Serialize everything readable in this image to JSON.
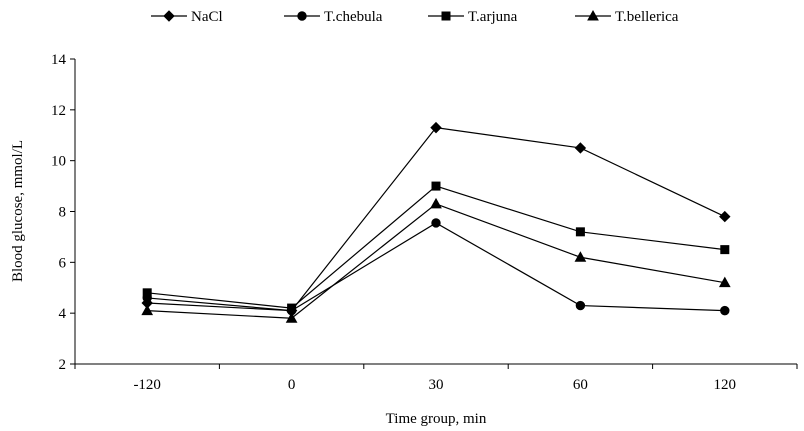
{
  "chart_data": {
    "type": "line",
    "title": "",
    "xlabel": "Time group, min",
    "ylabel": "Blood glucose, mmol/L",
    "categories": [
      "-120",
      "0",
      "30",
      "60",
      "120"
    ],
    "ylim": [
      2,
      14
    ],
    "yticks": [
      "2",
      "4",
      "6",
      "8",
      "10",
      "12",
      "14"
    ],
    "grid": false,
    "legend_position": "top",
    "series": [
      {
        "name": "NaCl",
        "marker": "diamond",
        "values": [
          4.4,
          4.1,
          11.3,
          10.5,
          7.8
        ]
      },
      {
        "name": "T.chebula",
        "marker": "circle",
        "values": [
          4.6,
          4.1,
          7.55,
          4.3,
          4.1
        ]
      },
      {
        "name": "T.arjuna",
        "marker": "square",
        "values": [
          4.8,
          4.2,
          9.0,
          7.2,
          6.5
        ]
      },
      {
        "name": "T.bellerica",
        "marker": "triangle",
        "values": [
          4.1,
          3.8,
          8.3,
          6.2,
          5.2
        ]
      }
    ]
  }
}
